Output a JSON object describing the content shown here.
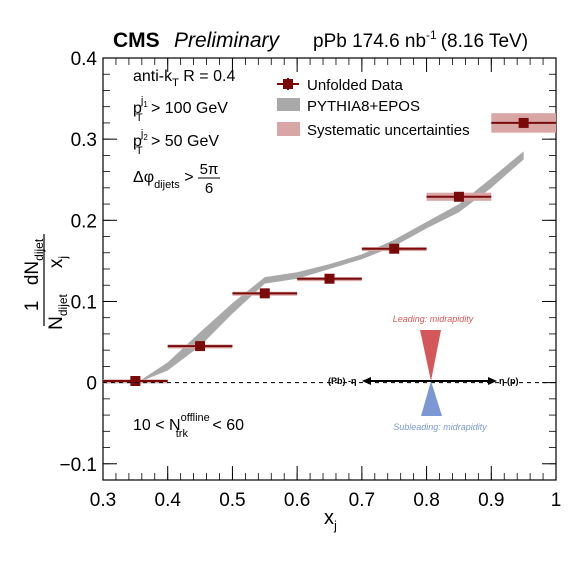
{
  "header": {
    "experiment": "CMS",
    "status": "Preliminary",
    "lumi_prefix": "pPb 174.6 nb",
    "lumi_exp": "-1",
    "energy": "(8.16 TeV)"
  },
  "cuts": {
    "jet_algo_prefix": "anti-k",
    "jet_algo_sub": "T",
    "jet_algo_suffix": " R = 0.4",
    "pt1_p": "p",
    "pt1_sup": "j",
    "pt1_supsub": "1",
    "pt1_sub": "T",
    "pt1_rest": " > 100 GeV",
    "pt2_p": "p",
    "pt2_sup": "j",
    "pt2_supsub": "2",
    "pt2_sub": "T",
    "pt2_rest": " > 50 GeV",
    "dphi_prefix": "Δφ",
    "dphi_sub": "dijets",
    "dphi_gt": " > ",
    "dphi_num": "5π",
    "dphi_den": "6",
    "mult_lo": "10 < N",
    "mult_sup": "offline",
    "mult_sub": "trk",
    "mult_hi": " < 60"
  },
  "legend": {
    "data": "Unfolded Data",
    "mc": "PYTHIA8+EPOS",
    "syst": "Systematic uncertainties"
  },
  "inset": {
    "leading": "Leading: midrapidity",
    "subleading": "Subleading: midrapidity",
    "left_label": "(Pb) -η",
    "right_label": "η (p)"
  },
  "chart_data": {
    "type": "scatter",
    "xlabel": "x",
    "xlabel_sub": "j",
    "ylabel_num": "dN",
    "ylabel_num_sub": "dijet",
    "ylabel_den": "x",
    "ylabel_den_sub": "j",
    "ylabel_pre_num": "1",
    "ylabel_pre_den": "N",
    "ylabel_pre_den_sub": "dijet",
    "xlim": [
      0.3,
      1.0
    ],
    "ylim": [
      -0.12,
      0.4
    ],
    "xticks": [
      0.3,
      0.4,
      0.5,
      0.6,
      0.7,
      0.8,
      0.9,
      1.0
    ],
    "xtick_labels": [
      "0.3",
      "0.4",
      "0.5",
      "0.6",
      "0.7",
      "0.8",
      "0.9",
      "1"
    ],
    "yticks": [
      -0.1,
      0.0,
      0.1,
      0.2,
      0.3,
      0.4
    ],
    "ytick_labels": [
      "−0.1",
      "0",
      "0.1",
      "0.2",
      "0.3",
      "0.4"
    ],
    "grid": false,
    "legend_position": "top-right",
    "series": [
      {
        "name": "Unfolded Data",
        "color": "#7a0a0a",
        "x": [
          0.35,
          0.45,
          0.55,
          0.65,
          0.75,
          0.85,
          0.95
        ],
        "y": [
          0.002,
          0.045,
          0.11,
          0.128,
          0.165,
          0.229,
          0.32
        ],
        "xerr": [
          0.05,
          0.05,
          0.05,
          0.05,
          0.05,
          0.05,
          0.05
        ],
        "syst": [
          0.002,
          0.002,
          0.002,
          0.002,
          0.002,
          0.005,
          0.012
        ],
        "syst_color": "#d9a6a6"
      },
      {
        "name": "PYTHIA8+EPOS",
        "color": "#a9a9a9",
        "x": [
          0.36,
          0.4,
          0.45,
          0.5,
          0.55,
          0.6,
          0.65,
          0.7,
          0.75,
          0.8,
          0.85,
          0.9,
          0.95
        ],
        "y_low": [
          0.002,
          0.015,
          0.045,
          0.085,
          0.122,
          0.128,
          0.14,
          0.152,
          0.168,
          0.19,
          0.21,
          0.24,
          0.275
        ],
        "y_high": [
          0.004,
          0.025,
          0.062,
          0.098,
          0.13,
          0.136,
          0.146,
          0.158,
          0.176,
          0.198,
          0.22,
          0.252,
          0.285
        ]
      }
    ]
  },
  "colors": {
    "data": "#7a0a0a",
    "mc": "#a9a9a9",
    "syst": "#d9a6a6",
    "leading": "#d4585a",
    "subleading": "#7c98d4",
    "leading_text": "#d95a5a",
    "subleading_text": "#7c98d4"
  }
}
